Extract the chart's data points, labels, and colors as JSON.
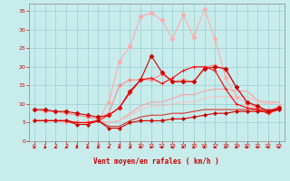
{
  "xlabel": "Vent moyen/en rafales ( km/h )",
  "xlim": [
    -0.5,
    23.5
  ],
  "ylim": [
    0,
    37
  ],
  "yticks": [
    0,
    5,
    10,
    15,
    20,
    25,
    30,
    35
  ],
  "xticks": [
    0,
    1,
    2,
    3,
    4,
    5,
    6,
    7,
    8,
    9,
    10,
    11,
    12,
    13,
    14,
    15,
    16,
    17,
    18,
    19,
    20,
    21,
    22,
    23
  ],
  "bg_color": "#c8ecec",
  "grid_color": "#a0d4d4",
  "lines": [
    {
      "x": [
        0,
        1,
        2,
        3,
        4,
        5,
        6,
        7,
        8,
        9,
        10,
        11,
        12,
        13,
        14,
        15,
        16,
        17,
        18,
        19,
        20,
        21,
        22,
        23
      ],
      "y": [
        5.5,
        5.5,
        5.5,
        5.0,
        5.0,
        5.0,
        5.5,
        10.5,
        21.5,
        25.5,
        33.5,
        34.5,
        32.5,
        27.5,
        34.0,
        28.0,
        35.5,
        27.5,
        17.0,
        12.0,
        10.0,
        9.0,
        7.5,
        9.5
      ],
      "color": "#ffaaaa",
      "linewidth": 0.8,
      "marker": "D",
      "markersize": 2.5,
      "alpha": 1.0,
      "zorder": 2
    },
    {
      "x": [
        0,
        1,
        2,
        3,
        4,
        5,
        6,
        7,
        8,
        9,
        10,
        11,
        12,
        13,
        14,
        15,
        16,
        17,
        18,
        19,
        20,
        21,
        22,
        23
      ],
      "y": [
        8.5,
        8.0,
        8.0,
        7.5,
        7.0,
        6.5,
        6.0,
        7.5,
        15.0,
        16.5,
        16.5,
        16.5,
        18.0,
        16.0,
        16.5,
        16.0,
        20.0,
        20.5,
        19.0,
        14.5,
        10.5,
        9.0,
        8.0,
        9.0
      ],
      "color": "#ff8888",
      "linewidth": 0.8,
      "marker": "D",
      "markersize": 2.0,
      "alpha": 1.0,
      "zorder": 3
    },
    {
      "x": [
        0,
        1,
        2,
        3,
        4,
        5,
        6,
        7,
        8,
        9,
        10,
        11,
        12,
        13,
        14,
        15,
        16,
        17,
        18,
        19,
        20,
        21,
        22,
        23
      ],
      "y": [
        8.5,
        8.5,
        8.0,
        8.0,
        7.5,
        7.0,
        6.5,
        7.0,
        9.0,
        13.5,
        16.5,
        23.0,
        18.5,
        16.0,
        16.0,
        16.0,
        19.5,
        20.0,
        19.5,
        14.5,
        10.5,
        9.5,
        8.0,
        9.0
      ],
      "color": "#cc0000",
      "linewidth": 0.8,
      "marker": "D",
      "markersize": 2.5,
      "alpha": 1.0,
      "zorder": 4
    },
    {
      "x": [
        0,
        1,
        2,
        3,
        4,
        5,
        6,
        7,
        8,
        9,
        10,
        11,
        12,
        13,
        14,
        15,
        16,
        17,
        18,
        19,
        20,
        21,
        22,
        23
      ],
      "y": [
        5.5,
        5.5,
        5.5,
        5.5,
        5.0,
        5.0,
        5.5,
        7.0,
        9.0,
        13.0,
        16.5,
        17.0,
        15.5,
        17.0,
        19.0,
        20.0,
        20.0,
        19.0,
        14.0,
        10.0,
        9.0,
        8.5,
        7.5,
        8.5
      ],
      "color": "#ff0000",
      "linewidth": 0.8,
      "marker": "+",
      "markersize": 3.5,
      "alpha": 1.0,
      "zorder": 5
    },
    {
      "x": [
        0,
        1,
        2,
        3,
        4,
        5,
        6,
        7,
        8,
        9,
        10,
        11,
        12,
        13,
        14,
        15,
        16,
        17,
        18,
        19,
        20,
        21,
        22,
        23
      ],
      "y": [
        5.5,
        5.5,
        5.5,
        5.5,
        5.0,
        5.0,
        5.5,
        5.0,
        5.5,
        7.5,
        9.5,
        10.5,
        10.5,
        11.5,
        12.5,
        12.5,
        13.5,
        14.0,
        14.0,
        13.5,
        13.5,
        11.0,
        10.5,
        10.5
      ],
      "color": "#ff9999",
      "linewidth": 0.8,
      "marker": null,
      "markersize": 0,
      "alpha": 0.9,
      "zorder": 2
    },
    {
      "x": [
        0,
        1,
        2,
        3,
        4,
        5,
        6,
        7,
        8,
        9,
        10,
        11,
        12,
        13,
        14,
        15,
        16,
        17,
        18,
        19,
        20,
        21,
        22,
        23
      ],
      "y": [
        5.5,
        5.5,
        5.5,
        5.5,
        5.0,
        5.0,
        5.5,
        5.0,
        5.5,
        7.0,
        8.5,
        9.5,
        9.5,
        10.0,
        10.5,
        10.5,
        11.5,
        12.0,
        12.0,
        12.0,
        12.0,
        10.5,
        10.0,
        10.5
      ],
      "color": "#ffbbbb",
      "linewidth": 0.8,
      "marker": null,
      "markersize": 0,
      "alpha": 0.9,
      "zorder": 2
    },
    {
      "x": [
        0,
        1,
        2,
        3,
        4,
        5,
        6,
        7,
        8,
        9,
        10,
        11,
        12,
        13,
        14,
        15,
        16,
        17,
        18,
        19,
        20,
        21,
        22,
        23
      ],
      "y": [
        5.5,
        5.5,
        5.5,
        5.5,
        5.0,
        5.0,
        5.5,
        4.0,
        4.0,
        5.5,
        6.5,
        7.0,
        7.0,
        7.5,
        7.5,
        8.0,
        8.5,
        8.5,
        8.5,
        8.5,
        8.5,
        8.5,
        8.5,
        8.5
      ],
      "color": "#dd3333",
      "linewidth": 0.8,
      "marker": null,
      "markersize": 0,
      "alpha": 1.0,
      "zorder": 3
    },
    {
      "x": [
        0,
        1,
        2,
        3,
        4,
        5,
        6,
        7,
        8,
        9,
        10,
        11,
        12,
        13,
        14,
        15,
        16,
        17,
        18,
        19,
        20,
        21,
        22,
        23
      ],
      "y": [
        5.5,
        5.5,
        5.5,
        5.5,
        4.5,
        4.5,
        5.5,
        3.5,
        3.5,
        5.0,
        5.5,
        5.5,
        5.5,
        6.0,
        6.0,
        6.5,
        7.0,
        7.5,
        7.5,
        8.0,
        8.0,
        8.0,
        8.0,
        8.5
      ],
      "color": "#cc0000",
      "linewidth": 0.8,
      "marker": "D",
      "markersize": 2.0,
      "alpha": 1.0,
      "zorder": 6
    }
  ],
  "arrow_color": "#cc0000",
  "tick_color": "#cc0000",
  "label_color": "#cc0000"
}
